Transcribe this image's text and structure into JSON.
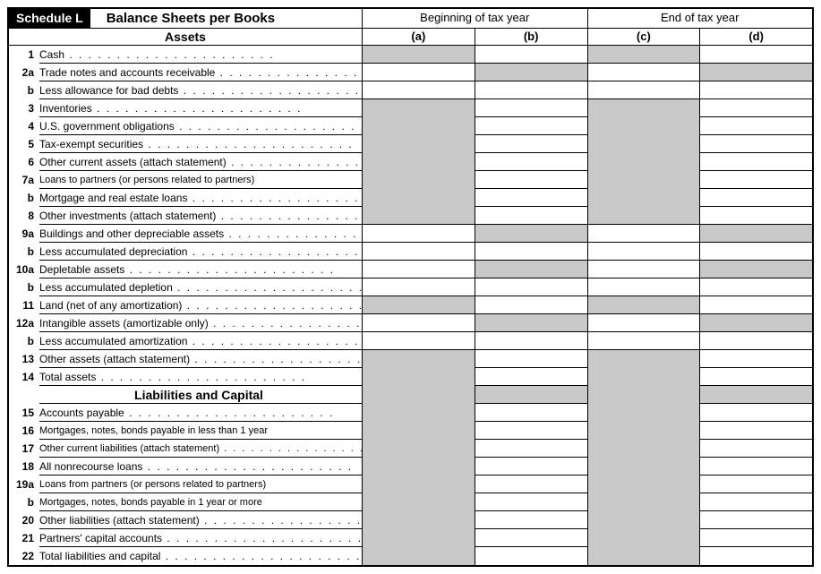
{
  "header": {
    "schedule": "Schedule L",
    "title": "Balance Sheets per Books",
    "period_begin": "Beginning of tax year",
    "period_end": "End of tax year"
  },
  "subheader": {
    "assets": "Assets",
    "col_a": "(a)",
    "col_b": "(b)",
    "col_c": "(c)",
    "col_d": "(d)"
  },
  "section2_title": "Liabilities and Capital",
  "rows": [
    {
      "n": "1",
      "t": "Cash",
      "d": true,
      "s": [
        1,
        0,
        1,
        0
      ]
    },
    {
      "n": "2a",
      "t": "Trade notes and accounts receivable",
      "d": true,
      "s": [
        0,
        1,
        0,
        1
      ]
    },
    {
      "n": "b",
      "t": "Less allowance for bad debts",
      "d": true,
      "s": [
        0,
        0,
        0,
        0
      ]
    },
    {
      "n": "3",
      "t": "Inventories",
      "d": true,
      "s": [
        2,
        0,
        2,
        0
      ]
    },
    {
      "n": "4",
      "t": "U.S. government obligations",
      "d": true,
      "s": [
        3,
        0,
        3,
        0
      ]
    },
    {
      "n": "5",
      "t": "Tax-exempt securities",
      "d": true,
      "s": [
        3,
        0,
        3,
        0
      ]
    },
    {
      "n": "6",
      "t": "Other current assets (attach statement)",
      "d": true,
      "s": [
        3,
        0,
        3,
        0
      ]
    },
    {
      "n": "7a",
      "t": "Loans to partners (or persons related to partners)",
      "d": false,
      "sm": true,
      "s": [
        3,
        0,
        3,
        0
      ]
    },
    {
      "n": "b",
      "t": "Mortgage and real estate loans",
      "d": true,
      "s": [
        3,
        0,
        3,
        0
      ]
    },
    {
      "n": "8",
      "t": "Other investments (attach statement)",
      "d": true,
      "s": [
        1,
        0,
        1,
        0
      ]
    },
    {
      "n": "9a",
      "t": "Buildings and other depreciable assets",
      "d": true,
      "s": [
        0,
        1,
        0,
        1
      ]
    },
    {
      "n": "b",
      "t": "Less accumulated depreciation",
      "d": true,
      "s": [
        0,
        0,
        0,
        0
      ]
    },
    {
      "n": "10a",
      "t": "Depletable assets",
      "d": true,
      "s": [
        0,
        1,
        0,
        1
      ]
    },
    {
      "n": "b",
      "t": "Less accumulated depletion",
      "d": true,
      "s": [
        0,
        0,
        0,
        0
      ]
    },
    {
      "n": "11",
      "t": "Land (net of any amortization)",
      "d": true,
      "s": [
        1,
        0,
        1,
        0
      ]
    },
    {
      "n": "12a",
      "t": "Intangible assets (amortizable only)",
      "d": true,
      "s": [
        0,
        1,
        0,
        1
      ]
    },
    {
      "n": "b",
      "t": "Less accumulated amortization",
      "d": true,
      "s": [
        0,
        0,
        0,
        0
      ]
    },
    {
      "n": "13",
      "t": "Other assets (attach statement)",
      "d": true,
      "s": [
        2,
        0,
        2,
        0
      ]
    },
    {
      "n": "14",
      "t": "Total assets",
      "d": true,
      "s": [
        3,
        0,
        3,
        0
      ]
    },
    {
      "n": "",
      "t": "__TITLE__",
      "s": [
        3,
        1,
        3,
        1
      ]
    },
    {
      "n": "15",
      "t": "Accounts payable",
      "d": true,
      "s": [
        3,
        0,
        3,
        0
      ]
    },
    {
      "n": "16",
      "t": "Mortgages, notes, bonds payable in less than 1 year",
      "d": false,
      "sm": true,
      "s": [
        3,
        0,
        3,
        0
      ]
    },
    {
      "n": "17",
      "t": "Other current liabilities (attach statement)",
      "d": true,
      "sm": true,
      "s": [
        3,
        0,
        3,
        0
      ]
    },
    {
      "n": "18",
      "t": "All nonrecourse loans",
      "d": true,
      "s": [
        3,
        0,
        3,
        0
      ]
    },
    {
      "n": "19a",
      "t": "Loans from partners (or persons related to partners)",
      "d": false,
      "sm": true,
      "s": [
        3,
        0,
        3,
        0
      ]
    },
    {
      "n": "b",
      "t": "Mortgages, notes, bonds payable in 1 year or more",
      "d": false,
      "sm": true,
      "s": [
        3,
        0,
        3,
        0
      ]
    },
    {
      "n": "20",
      "t": "Other liabilities (attach statement)",
      "d": true,
      "s": [
        3,
        0,
        3,
        0
      ]
    },
    {
      "n": "21",
      "t": "Partners' capital accounts",
      "d": true,
      "s": [
        3,
        0,
        3,
        0
      ]
    },
    {
      "n": "22",
      "t": "Total liabilities and capital",
      "d": true,
      "s": [
        1,
        0,
        1,
        0
      ]
    }
  ],
  "colors": {
    "shade": "#c8c8c8",
    "border": "#000000",
    "background": "#ffffff"
  }
}
